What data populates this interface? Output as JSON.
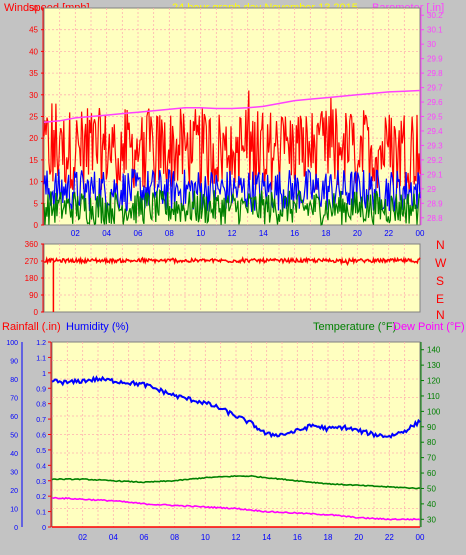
{
  "header": {
    "windspeed_label": "Windspeed [mph]",
    "title": "24 hour graph day   November 13 2015",
    "barometer_label": "Barometer [.in]"
  },
  "direction_labels": [
    "N",
    "W",
    "S",
    "E",
    "N"
  ],
  "bottom_header": {
    "rainfall_label": "Rainfall (.in)",
    "humidity_label": "Humidity (%)",
    "temperature_label": "Temperature (°F)",
    "dewpoint_label": "Dew Point (°F)"
  },
  "colors": {
    "background": "#c3c3c3",
    "plot_background": "#ffffc0",
    "grid": "#ffb0b0",
    "wind": "#ff0000",
    "gust": "#0000ff",
    "avg": "#008000",
    "barometer": "#ff40ff",
    "humidity": "#0000ff",
    "temperature": "#008000",
    "dewpoint": "#ff00ff",
    "rainfall": "#ff0000",
    "title": "#ffff00"
  },
  "chart_data": [
    {
      "type": "line",
      "name": "wind-and-barometer",
      "x_ticks": [
        "02",
        "04",
        "06",
        "08",
        "10",
        "12",
        "14",
        "16",
        "18",
        "20",
        "22",
        "00"
      ],
      "x_range_hours": [
        0,
        24
      ],
      "left_axis": {
        "label": "Windspeed [mph]",
        "ticks": [
          0,
          5,
          10,
          15,
          20,
          25,
          30,
          35,
          40,
          45,
          50
        ],
        "range": [
          0,
          50
        ]
      },
      "right_axis": {
        "label": "Barometer [.in]",
        "ticks": [
          "28.8",
          "28.9",
          "29",
          "29.1",
          "29.2",
          "29.3",
          "29.4",
          "29.5",
          "29.6",
          "29.7",
          "29.8",
          "29.9",
          "30",
          "30.1",
          "30.2"
        ],
        "range": [
          28.75,
          30.25
        ]
      },
      "series": [
        {
          "name": "Barometer",
          "axis": "right",
          "points": [
            [
              0,
              29.46
            ],
            [
              1,
              29.47
            ],
            [
              2,
              29.49
            ],
            [
              3,
              29.5
            ],
            [
              4,
              29.51
            ],
            [
              5,
              29.52
            ],
            [
              6,
              29.53
            ],
            [
              7,
              29.54
            ],
            [
              8,
              29.55
            ],
            [
              9,
              29.56
            ],
            [
              10,
              29.56
            ],
            [
              11,
              29.555
            ],
            [
              12,
              29.555
            ],
            [
              13,
              29.56
            ],
            [
              14,
              29.57
            ],
            [
              15,
              29.59
            ],
            [
              16,
              29.61
            ],
            [
              17,
              29.62
            ],
            [
              18,
              29.63
            ],
            [
              19,
              29.64
            ],
            [
              20,
              29.65
            ],
            [
              21,
              29.66
            ],
            [
              22,
              29.67
            ],
            [
              23,
              29.675
            ],
            [
              24,
              29.68
            ]
          ]
        }
      ],
      "wind_profile": {
        "gust_mph_range": [
          8,
          27
        ],
        "wind_mph_range": [
          3,
          13
        ],
        "avg_mph_range": [
          0,
          8
        ]
      },
      "grid": true
    },
    {
      "type": "line",
      "name": "wind-direction",
      "left_axis": {
        "ticks": [
          0,
          90,
          180,
          270,
          360
        ],
        "range": [
          0,
          360
        ]
      },
      "right_axis_labels": [
        "N",
        "W",
        "S",
        "E",
        "N"
      ],
      "series": [
        {
          "name": "Wind Direction",
          "points": [
            [
              0,
              270
            ],
            [
              0.5,
              265
            ],
            [
              1,
              278
            ],
            [
              2,
              262
            ],
            [
              3,
              272
            ],
            [
              4,
              268
            ],
            [
              5,
              275
            ],
            [
              6,
              266
            ],
            [
              7,
              270
            ],
            [
              8,
              262
            ],
            [
              9,
              275
            ],
            [
              10,
              268
            ],
            [
              11,
              272
            ],
            [
              12,
              265
            ],
            [
              13,
              278
            ],
            [
              14,
              270
            ],
            [
              15,
              262
            ],
            [
              16,
              272
            ],
            [
              17,
              268
            ],
            [
              18,
              265
            ],
            [
              19,
              272
            ],
            [
              20,
              258
            ],
            [
              21,
              262
            ],
            [
              22,
              270
            ],
            [
              23,
              265
            ],
            [
              24,
              272
            ]
          ]
        }
      ],
      "spike_to_zero_at_hour": 0.6,
      "grid": true
    },
    {
      "type": "line",
      "name": "humidity-temp-rain",
      "x_ticks": [
        "02",
        "04",
        "06",
        "08",
        "10",
        "12",
        "14",
        "16",
        "18",
        "20",
        "22",
        "00"
      ],
      "x_range_hours": [
        0,
        24
      ],
      "left_axis_humidity": {
        "label": "Humidity (%)",
        "ticks": [
          0,
          10,
          20,
          30,
          40,
          50,
          60,
          70,
          80,
          90,
          100
        ],
        "range": [
          0,
          100
        ]
      },
      "left_axis_rain": {
        "label": "Rainfall (.in)",
        "ticks": [
          "0",
          "0.1",
          "0.2",
          "0.3",
          "0.4",
          "0.5",
          "0.6",
          "0.7",
          "0.8",
          "0.9",
          "1",
          "1.1",
          "1.2"
        ],
        "range": [
          0,
          1.2
        ]
      },
      "right_axis": {
        "label": "Temperature (°F)",
        "ticks": [
          30,
          40,
          50,
          60,
          70,
          80,
          90,
          100,
          110,
          120,
          130,
          140
        ],
        "range": [
          25,
          145
        ]
      },
      "series": [
        {
          "name": "Humidity",
          "axis": "humidity",
          "points": [
            [
              0,
              79
            ],
            [
              1,
              78
            ],
            [
              2,
              79
            ],
            [
              3,
              80
            ],
            [
              4,
              79
            ],
            [
              5,
              78
            ],
            [
              6,
              77
            ],
            [
              7,
              74
            ],
            [
              8,
              71
            ],
            [
              9,
              69
            ],
            [
              10,
              67
            ],
            [
              11,
              64
            ],
            [
              12,
              60
            ],
            [
              13,
              56
            ],
            [
              14,
              50
            ],
            [
              15,
              50
            ],
            [
              16,
              52
            ],
            [
              17,
              55
            ],
            [
              18,
              53
            ],
            [
              19,
              54
            ],
            [
              20,
              52
            ],
            [
              21,
              50
            ],
            [
              22,
              49
            ],
            [
              23,
              52
            ],
            [
              24,
              57
            ]
          ]
        },
        {
          "name": "Temperature",
          "axis": "temp",
          "points": [
            [
              0,
              56
            ],
            [
              2,
              56
            ],
            [
              4,
              55
            ],
            [
              6,
              54
            ],
            [
              8,
              55
            ],
            [
              10,
              57
            ],
            [
              12,
              58
            ],
            [
              13,
              58
            ],
            [
              14,
              57
            ],
            [
              16,
              55
            ],
            [
              18,
              53
            ],
            [
              20,
              52
            ],
            [
              22,
              51
            ],
            [
              24,
              50
            ]
          ]
        },
        {
          "name": "Dew Point",
          "axis": "temp",
          "points": [
            [
              0,
              44
            ],
            [
              2,
              43
            ],
            [
              4,
              42
            ],
            [
              6,
              40
            ],
            [
              8,
              39
            ],
            [
              10,
              38
            ],
            [
              12,
              37
            ],
            [
              14,
              35
            ],
            [
              16,
              34
            ],
            [
              18,
              33
            ],
            [
              20,
              31
            ],
            [
              22,
              30
            ],
            [
              24,
              30
            ]
          ]
        },
        {
          "name": "Rainfall",
          "axis": "rain",
          "points": [
            [
              0,
              0
            ],
            [
              24,
              0
            ]
          ]
        }
      ],
      "grid": true
    }
  ]
}
